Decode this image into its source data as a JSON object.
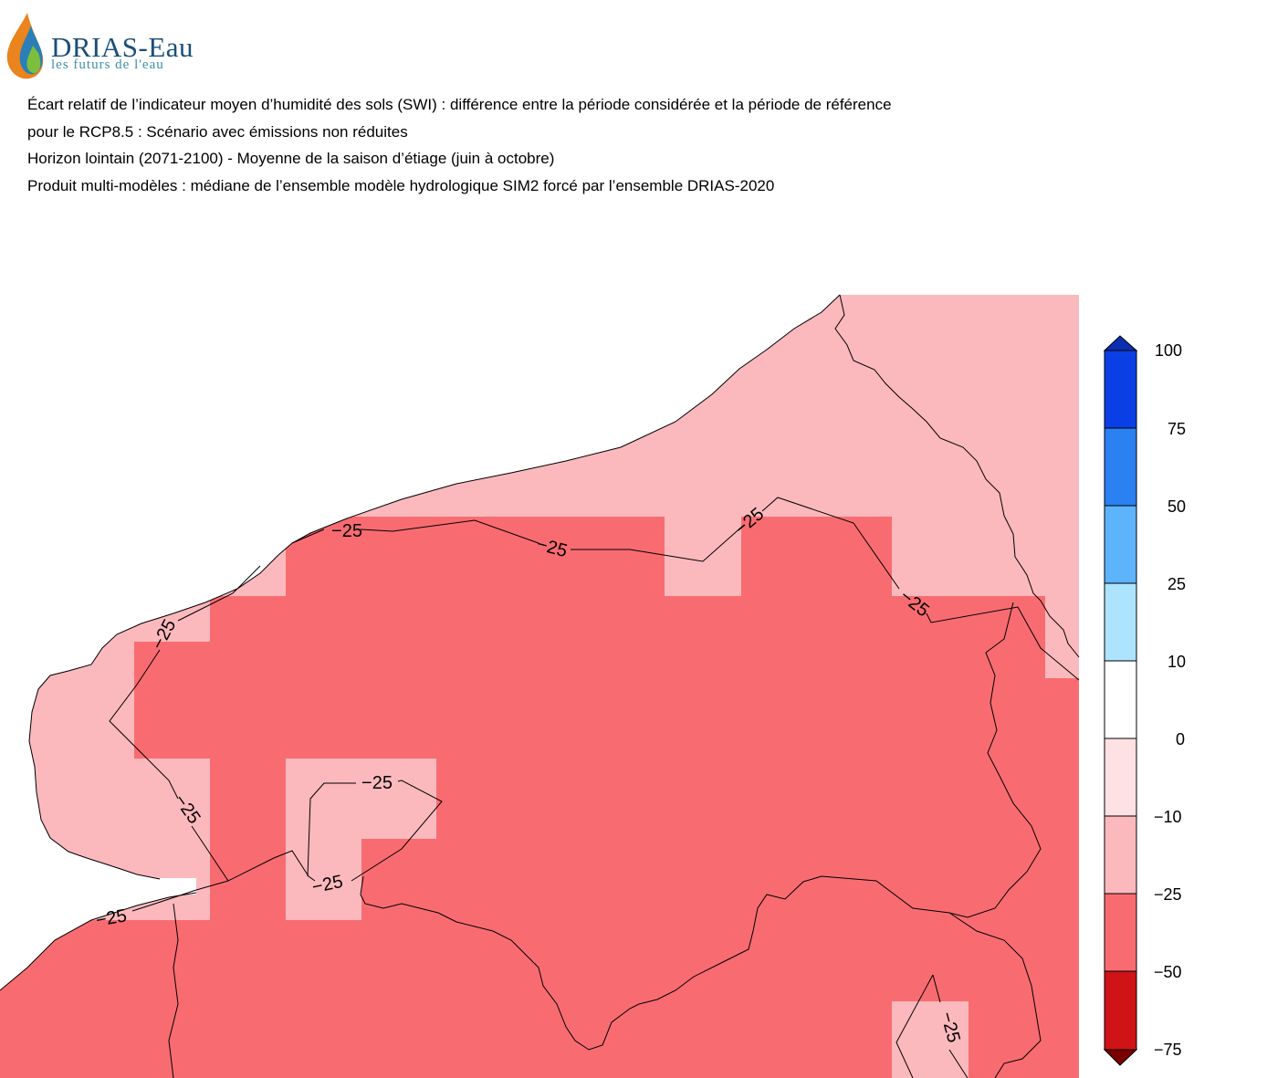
{
  "logo": {
    "name": "DRIAS-Eau",
    "tagline": "les futurs de l'eau"
  },
  "titles": [
    "Écart relatif de l’indicateur moyen d’humidité des sols (SWI) : différence entre la période considérée et la période de référence",
    "pour le RCP8.5 : Scénario avec émissions non réduites",
    "Horizon lointain (2071-2100) - Moyenne de la saison d’étiage (juin à octobre)",
    "Produit multi-modèles : médiane de l’ensemble modèle hydrologique SIM2 forcé par l’ensemble DRIAS-2020"
  ],
  "map": {
    "contour_level_label": "−25",
    "class_colors": {
      "minus25_to_minus10": "#fbb9bd",
      "minus50_to_minus25": "#f86c71"
    }
  },
  "colorbar": {
    "tick_labels": [
      "100",
      "75",
      "50",
      "25",
      "10",
      "0",
      "−10",
      "−25",
      "−50",
      "−75"
    ],
    "colors_top_to_bottom": [
      "#0a3fe6",
      "#2b80f2",
      "#5db4fb",
      "#ade3fd",
      "#ffffff",
      "#fee1e3",
      "#fbb9bd",
      "#f86c71",
      "#cf1316"
    ],
    "over_color": "#0b2fb0",
    "under_color": "#7a0000"
  }
}
